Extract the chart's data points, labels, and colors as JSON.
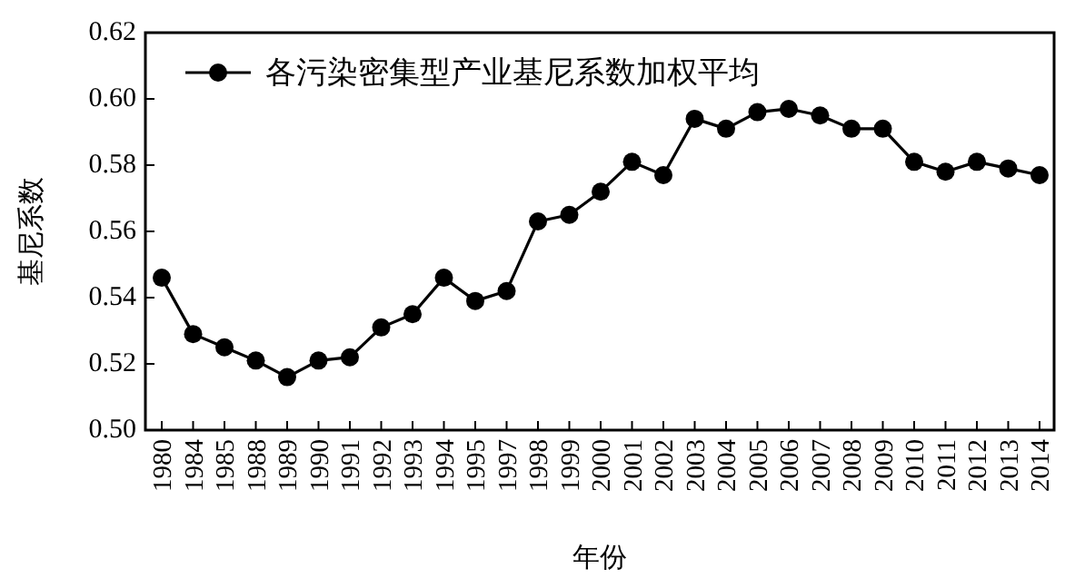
{
  "chart_data": {
    "type": "line",
    "xlabel": "年份",
    "ylabel": "基尼系数",
    "categories": [
      "1980",
      "1984",
      "1985",
      "1988",
      "1989",
      "1990",
      "1991",
      "1992",
      "1993",
      "1994",
      "1995",
      "1997",
      "1998",
      "1999",
      "2000",
      "2001",
      "2002",
      "2003",
      "2004",
      "2005",
      "2006",
      "2007",
      "2008",
      "2009",
      "2010",
      "2011",
      "2012",
      "2013",
      "2014"
    ],
    "series": [
      {
        "name": "各污染密集型产业基尼系数加权平均",
        "color": "#000000",
        "values": [
          0.546,
          0.529,
          0.525,
          0.521,
          0.516,
          0.521,
          0.522,
          0.531,
          0.535,
          0.546,
          0.539,
          0.542,
          0.563,
          0.565,
          0.572,
          0.581,
          0.577,
          0.594,
          0.591,
          0.596,
          0.597,
          0.595,
          0.591,
          0.591,
          0.581,
          0.578,
          0.581,
          0.579,
          0.577
        ]
      }
    ],
    "ylim": [
      0.5,
      0.62
    ],
    "yticks": [
      {
        "value": 0.5,
        "label": "0.50"
      },
      {
        "value": 0.52,
        "label": "0.52"
      },
      {
        "value": 0.54,
        "label": "0.54"
      },
      {
        "value": 0.56,
        "label": "0.56"
      },
      {
        "value": 0.58,
        "label": "0.58"
      },
      {
        "value": 0.6,
        "label": "0.60"
      },
      {
        "value": 0.62,
        "label": "0.62"
      }
    ],
    "grid": false,
    "legend": "top left",
    "marker": "circle",
    "line_style": "solid"
  }
}
